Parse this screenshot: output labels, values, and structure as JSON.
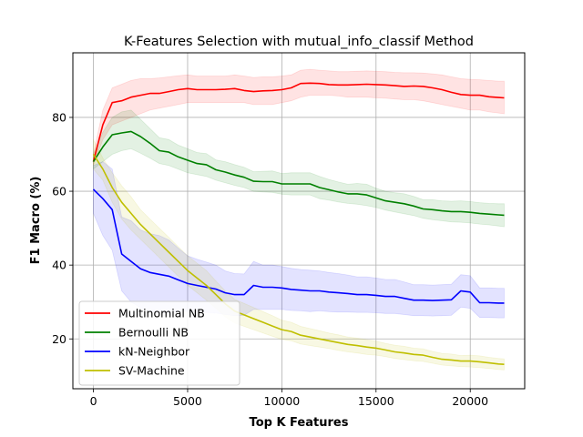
{
  "chart_data": {
    "type": "line",
    "title": "K-Features Selection with mutual_info_classif Method",
    "xlabel": "Top K Features",
    "ylabel": "F1 Macro (%)",
    "xlim": [
      -1090,
      22890
    ],
    "ylim": [
      6.5,
      97.5
    ],
    "xticks": [
      0,
      5000,
      10000,
      15000,
      20000
    ],
    "yticks": [
      20,
      40,
      60,
      80
    ],
    "xtick_labels": [
      "0",
      "5000",
      "10000",
      "15000",
      "20000"
    ],
    "ytick_labels": [
      "20",
      "40",
      "60",
      "80"
    ],
    "grid": true,
    "legend_position": "lower-left",
    "x": [
      0,
      500,
      1000,
      1500,
      2000,
      2500,
      3000,
      3500,
      4000,
      4500,
      5000,
      5500,
      6000,
      6500,
      7000,
      7500,
      8000,
      8500,
      9000,
      9500,
      10000,
      10500,
      11000,
      11500,
      12000,
      12500,
      13000,
      13500,
      14000,
      14500,
      15000,
      15500,
      16000,
      16500,
      17000,
      17500,
      18000,
      18500,
      19000,
      19500,
      20000,
      20500,
      21000,
      21500,
      21800
    ],
    "series": [
      {
        "name": "Multinomial NB",
        "color": "#ff0000",
        "band_color": "#ff0000",
        "values": [
          68,
          78,
          84,
          84.5,
          85.5,
          86,
          86.5,
          86.5,
          87,
          87.5,
          87.8,
          87.5,
          87.5,
          87.5,
          87.6,
          87.8,
          87.3,
          87,
          87.2,
          87.3,
          87.5,
          88,
          89.2,
          89.3,
          89.2,
          88.9,
          88.8,
          88.8,
          88.9,
          89,
          88.9,
          88.8,
          88.6,
          88.4,
          88.5,
          88.4,
          88,
          87.5,
          86.8,
          86.2,
          86,
          86,
          85.6,
          85.4,
          85.3
        ],
        "lower": [
          67,
          74,
          78,
          79,
          80,
          81,
          82,
          82.5,
          83,
          83.5,
          84,
          84,
          84,
          84,
          84,
          84,
          84,
          83.5,
          83.5,
          83.5,
          84,
          84.5,
          85.5,
          86,
          86,
          86,
          85.8,
          85.5,
          85.5,
          85.5,
          85.3,
          85.2,
          85,
          84.8,
          84.8,
          84.5,
          84,
          83.5,
          83,
          82.5,
          82,
          82,
          81.5,
          81.2,
          81
        ],
        "upper": [
          70,
          82,
          88,
          89,
          90,
          90.5,
          90.5,
          90.7,
          91,
          91.3,
          91.5,
          91.2,
          91.2,
          91.2,
          91.2,
          91.5,
          91.2,
          90.8,
          91,
          91,
          91.2,
          91.5,
          92.8,
          93,
          92.8,
          92.6,
          92.4,
          92.4,
          92.5,
          92.6,
          92.5,
          92.4,
          92.2,
          92.1,
          92.1,
          92,
          91.8,
          91.5,
          91,
          90.5,
          90.3,
          90.2,
          90,
          89.8,
          89.8
        ]
      },
      {
        "name": "Bernoulli NB",
        "color": "#008000",
        "band_color": "#008000",
        "values": [
          68,
          72,
          75.3,
          75.8,
          76.2,
          74.8,
          73,
          71,
          70.6,
          69.3,
          68.4,
          67.5,
          67.2,
          65.8,
          65.2,
          64.4,
          63.8,
          62.7,
          62.6,
          62.6,
          62,
          62,
          62,
          62,
          61,
          60.4,
          59.8,
          59.3,
          59.3,
          59,
          58.2,
          57.4,
          57,
          56.6,
          56,
          55.2,
          55,
          54.7,
          54.5,
          54.5,
          54.3,
          54,
          53.8,
          53.6,
          53.5
        ],
        "lower": [
          66,
          68,
          70,
          71,
          71.5,
          70.3,
          69,
          67.5,
          67,
          66,
          65,
          64.5,
          64,
          63,
          62.3,
          61.6,
          61,
          60,
          59.8,
          59.7,
          59.2,
          59,
          59,
          59,
          58,
          57.6,
          57.1,
          56.7,
          56.5,
          56.1,
          55.6,
          54.9,
          54.4,
          53.9,
          53.4,
          52.7,
          52.3,
          52,
          51.7,
          51.6,
          51.4,
          51.1,
          50.9,
          50.6,
          50.4
        ],
        "upper": [
          70,
          76,
          80,
          81.5,
          82,
          79.5,
          77,
          74.5,
          74,
          72.5,
          71.5,
          70.5,
          70.2,
          68.5,
          68,
          67.2,
          66.5,
          65.3,
          65.4,
          65.5,
          64.8,
          65,
          65,
          65,
          64,
          63.2,
          62.5,
          61.9,
          62.1,
          61.9,
          60.8,
          60,
          59.6,
          59.3,
          58.6,
          57.7,
          57.7,
          57.4,
          57.3,
          57.4,
          57.2,
          56.9,
          56.7,
          56.6,
          56.6
        ]
      },
      {
        "name": "kN-Neighbor",
        "color": "#0000ff",
        "band_color": "#0000ff",
        "values": [
          60.5,
          58,
          55,
          43,
          41,
          39,
          38,
          37.5,
          37,
          36,
          35,
          34.5,
          34,
          33.5,
          32.5,
          32,
          32,
          34.5,
          34,
          34,
          33.8,
          33.4,
          33.2,
          33,
          33,
          32.7,
          32.5,
          32.3,
          32,
          32,
          31.8,
          31.5,
          31.5,
          31,
          30.5,
          30.5,
          30.4,
          30.5,
          30.6,
          33,
          32.7,
          29.8,
          29.8,
          29.7,
          29.7
        ],
        "lower": [
          54,
          48,
          44,
          33,
          30,
          28.5,
          27.5,
          27,
          27.2,
          27.4,
          27.5,
          27.4,
          27.2,
          27,
          26.6,
          26.3,
          26.4,
          28,
          28,
          28,
          28,
          27.7,
          27.6,
          27.4,
          27.6,
          27.4,
          27.3,
          27.3,
          27.2,
          27.2,
          27.1,
          26.9,
          26.9,
          26.6,
          26.3,
          26.3,
          26.2,
          26.3,
          26.4,
          28.6,
          28.3,
          25.8,
          25.8,
          25.7,
          25.7
        ],
        "upper": [
          67,
          68,
          66,
          53,
          52,
          49.5,
          48.5,
          48,
          46.8,
          44.6,
          42.5,
          41.6,
          40.8,
          40,
          38.4,
          37.7,
          37.6,
          41,
          40,
          40,
          39.6,
          39.1,
          38.8,
          38.6,
          38.4,
          38,
          37.7,
          37.3,
          36.8,
          36.8,
          36.5,
          36.1,
          36.1,
          35.4,
          34.7,
          34.7,
          34.6,
          34.7,
          34.8,
          37.4,
          37.1,
          33.8,
          33.8,
          33.7,
          33.7
        ]
      },
      {
        "name": "SV-Machine",
        "color": "#bfbf00",
        "band_color": "#bfbf00",
        "values": [
          70,
          66,
          61,
          57,
          54,
          51,
          48.5,
          46,
          43.5,
          41,
          38.5,
          36.5,
          34.5,
          32,
          29.5,
          27.5,
          26.5,
          25.5,
          24.5,
          23.5,
          22.5,
          22,
          21,
          20.5,
          20,
          19.5,
          19,
          18.5,
          18.2,
          17.8,
          17.5,
          17,
          16.5,
          16.2,
          15.8,
          15.6,
          15,
          14.5,
          14.3,
          14,
          14,
          13.8,
          13.5,
          13.2,
          13.1
        ],
        "lower": [
          66,
          63,
          57,
          52.5,
          49.5,
          47,
          44.5,
          42,
          39.5,
          37,
          34.5,
          32.5,
          30.5,
          28.3,
          26,
          24.3,
          23.4,
          22.5,
          21.6,
          20.7,
          19.9,
          19.5,
          18.6,
          18.2,
          17.8,
          17.4,
          16.9,
          16.5,
          16.2,
          15.8,
          15.6,
          15.2,
          14.7,
          14.4,
          14.1,
          13.9,
          13.4,
          12.9,
          12.7,
          12.5,
          12.4,
          12.2,
          12,
          11.7,
          11.6
        ],
        "upper": [
          74,
          69,
          65,
          61.5,
          58.5,
          55,
          52.5,
          50,
          47.5,
          45,
          42.5,
          40.5,
          38.5,
          35.7,
          33,
          30.7,
          29.6,
          28.5,
          27.4,
          26.3,
          25.1,
          24.5,
          23.4,
          22.8,
          22.2,
          21.6,
          21.1,
          20.5,
          20.2,
          19.8,
          19.4,
          18.8,
          18.3,
          18,
          17.5,
          17.3,
          16.6,
          16.1,
          15.9,
          15.5,
          15.6,
          15.4,
          15,
          14.7,
          14.6
        ]
      }
    ]
  }
}
